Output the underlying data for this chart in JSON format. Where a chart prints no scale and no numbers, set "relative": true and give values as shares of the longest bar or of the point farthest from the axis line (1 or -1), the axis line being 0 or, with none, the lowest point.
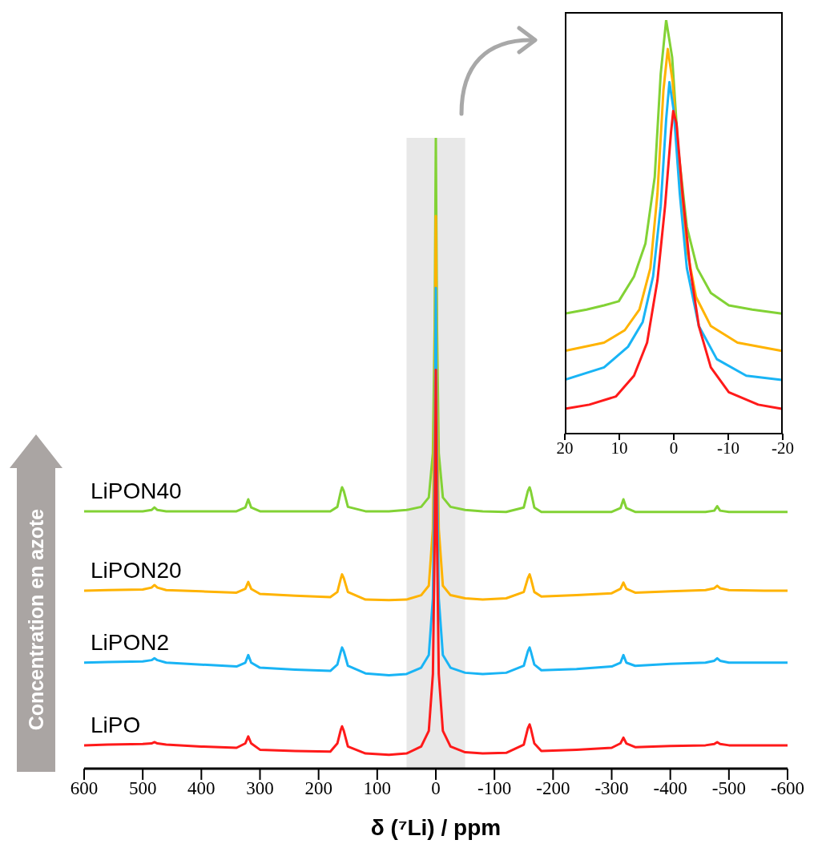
{
  "chart_data": [
    {
      "type": "line",
      "xlabel": "δ (⁷Li) / ppm",
      "relative": true,
      "xlim": [
        600,
        -600
      ],
      "xticks": [
        600,
        500,
        400,
        300,
        200,
        100,
        0,
        -100,
        -200,
        -300,
        -400,
        -500,
        -600
      ],
      "line_style": "solid",
      "annotations": [
        "Concentration en azote"
      ],
      "bands": [
        {
          "axis": "x",
          "from": 50,
          "to": -50,
          "color": "#e0e0e0"
        }
      ],
      "x": [
        600,
        560,
        500,
        485,
        480,
        475,
        460,
        400,
        340,
        325,
        320,
        315,
        300,
        240,
        180,
        168,
        162,
        160,
        157,
        150,
        120,
        80,
        50,
        25,
        12,
        5,
        2,
        0,
        -2,
        -5,
        -12,
        -25,
        -50,
        -80,
        -120,
        -150,
        -157,
        -160,
        -162,
        -168,
        -180,
        -240,
        -300,
        -315,
        -320,
        -325,
        -340,
        -400,
        -460,
        -475,
        -480,
        -485,
        -500,
        -560,
        -600
      ],
      "series": [
        {
          "name": "LiPON40",
          "color": "#82d235",
          "values": [
            0.408,
            0.408,
            0.408,
            0.41,
            0.414,
            0.41,
            0.408,
            0.408,
            0.408,
            0.414,
            0.427,
            0.414,
            0.408,
            0.408,
            0.408,
            0.415,
            0.44,
            0.446,
            0.44,
            0.415,
            0.408,
            0.408,
            0.41,
            0.415,
            0.43,
            0.5,
            0.7,
            1,
            0.7,
            0.5,
            0.43,
            0.415,
            0.41,
            0.408,
            0.407,
            0.414,
            0.44,
            0.446,
            0.44,
            0.414,
            0.407,
            0.407,
            0.407,
            0.413,
            0.427,
            0.413,
            0.407,
            0.407,
            0.407,
            0.409,
            0.416,
            0.409,
            0.407,
            0.407,
            0.407
          ]
        },
        {
          "name": "LiPON20",
          "color": "#ffb300",
          "values": [
            0.282,
            0.283,
            0.284,
            0.287,
            0.291,
            0.287,
            0.283,
            0.281,
            0.279,
            0.285,
            0.296,
            0.285,
            0.277,
            0.274,
            0.272,
            0.28,
            0.302,
            0.308,
            0.302,
            0.28,
            0.268,
            0.267,
            0.268,
            0.275,
            0.29,
            0.38,
            0.6,
            0.876,
            0.6,
            0.38,
            0.29,
            0.275,
            0.27,
            0.268,
            0.27,
            0.28,
            0.302,
            0.308,
            0.302,
            0.28,
            0.273,
            0.275,
            0.278,
            0.285,
            0.295,
            0.285,
            0.279,
            0.281,
            0.283,
            0.286,
            0.29,
            0.286,
            0.283,
            0.282,
            0.282
          ]
        },
        {
          "name": "LiPON2",
          "color": "#19b4f5",
          "values": [
            0.168,
            0.169,
            0.17,
            0.172,
            0.175,
            0.172,
            0.168,
            0.165,
            0.162,
            0.168,
            0.18,
            0.168,
            0.16,
            0.157,
            0.155,
            0.165,
            0.186,
            0.192,
            0.186,
            0.163,
            0.151,
            0.148,
            0.15,
            0.16,
            0.18,
            0.27,
            0.48,
            0.762,
            0.48,
            0.27,
            0.18,
            0.16,
            0.152,
            0.15,
            0.152,
            0.163,
            0.186,
            0.192,
            0.186,
            0.165,
            0.156,
            0.158,
            0.162,
            0.168,
            0.18,
            0.168,
            0.163,
            0.166,
            0.168,
            0.171,
            0.175,
            0.171,
            0.168,
            0.168,
            0.168
          ]
        },
        {
          "name": "LiPO",
          "color": "#ff1a1a",
          "values": [
            0.037,
            0.038,
            0.039,
            0.04,
            0.042,
            0.04,
            0.038,
            0.035,
            0.033,
            0.04,
            0.051,
            0.04,
            0.03,
            0.028,
            0.027,
            0.04,
            0.062,
            0.067,
            0.06,
            0.035,
            0.024,
            0.022,
            0.024,
            0.035,
            0.06,
            0.15,
            0.36,
            0.632,
            0.36,
            0.15,
            0.06,
            0.035,
            0.026,
            0.024,
            0.025,
            0.038,
            0.064,
            0.07,
            0.064,
            0.04,
            0.028,
            0.03,
            0.033,
            0.04,
            0.049,
            0.04,
            0.034,
            0.036,
            0.037,
            0.039,
            0.042,
            0.039,
            0.037,
            0.037,
            0.037
          ]
        }
      ]
    },
    {
      "type": "line",
      "relative": true,
      "xlim": [
        20,
        -20
      ],
      "xticks": [
        20,
        10,
        0,
        -10,
        -20
      ],
      "line_style": "solid",
      "series": [
        {
          "color": "#82d235",
          "x": [
            20,
            16,
            12.8,
            10.1,
            7.3,
            5.2,
            3.5,
            2.4,
            1.4,
            0.3,
            -0.8,
            -2.4,
            -4.3,
            -6.8,
            -10.1,
            -14.4,
            -19.8
          ],
          "values": [
            0.29,
            0.3,
            0.31,
            0.32,
            0.38,
            0.46,
            0.62,
            0.87,
            1,
            0.91,
            0.69,
            0.5,
            0.4,
            0.34,
            0.31,
            0.3,
            0.29
          ]
        },
        {
          "color": "#ffb300",
          "x": [
            20,
            12.8,
            9,
            6.3,
            4.3,
            3,
            1.9,
            1.1,
            0.2,
            -0.8,
            -2.2,
            -4.1,
            -6.8,
            -11.7,
            -19.8
          ],
          "values": [
            0.2,
            0.22,
            0.25,
            0.3,
            0.4,
            0.58,
            0.83,
            0.93,
            0.85,
            0.65,
            0.46,
            0.33,
            0.26,
            0.22,
            0.2
          ]
        },
        {
          "color": "#19b4f5",
          "x": [
            20,
            12.8,
            8.4,
            5.7,
            3.8,
            2.4,
            1.4,
            0.8,
            0,
            -1.1,
            -2.4,
            -4.6,
            -7.9,
            -13.3,
            -19.8
          ],
          "values": [
            0.13,
            0.16,
            0.21,
            0.27,
            0.38,
            0.55,
            0.76,
            0.85,
            0.78,
            0.58,
            0.4,
            0.26,
            0.18,
            0.14,
            0.13
          ]
        },
        {
          "color": "#ff1a1a",
          "x": [
            20,
            15.5,
            10.6,
            7.3,
            4.9,
            3,
            1.6,
            0.5,
            0.1,
            -0.5,
            -1.6,
            -3,
            -4.6,
            -6.8,
            -10.1,
            -15.5,
            -19.8
          ],
          "values": [
            0.06,
            0.07,
            0.09,
            0.14,
            0.22,
            0.37,
            0.55,
            0.73,
            0.78,
            0.75,
            0.58,
            0.4,
            0.26,
            0.16,
            0.1,
            0.07,
            0.06
          ]
        }
      ]
    }
  ]
}
